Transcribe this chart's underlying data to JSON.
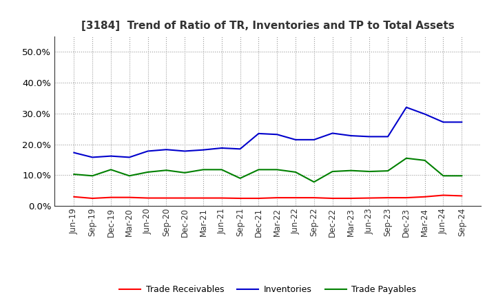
{
  "title": "[3184]  Trend of Ratio of TR, Inventories and TP to Total Assets",
  "x_labels": [
    "Jun-19",
    "Sep-19",
    "Dec-19",
    "Mar-20",
    "Jun-20",
    "Sep-20",
    "Dec-20",
    "Mar-21",
    "Jun-21",
    "Sep-21",
    "Dec-21",
    "Mar-22",
    "Jun-22",
    "Sep-22",
    "Dec-22",
    "Mar-23",
    "Jun-23",
    "Sep-23",
    "Dec-23",
    "Mar-24",
    "Jun-24",
    "Sep-24"
  ],
  "trade_receivables": [
    0.03,
    0.025,
    0.028,
    0.028,
    0.026,
    0.026,
    0.026,
    0.026,
    0.026,
    0.025,
    0.025,
    0.027,
    0.027,
    0.027,
    0.025,
    0.025,
    0.026,
    0.027,
    0.027,
    0.03,
    0.035,
    0.033
  ],
  "inventories": [
    0.173,
    0.158,
    0.162,
    0.158,
    0.178,
    0.183,
    0.178,
    0.182,
    0.188,
    0.185,
    0.235,
    0.232,
    0.215,
    0.215,
    0.236,
    0.228,
    0.225,
    0.225,
    0.32,
    0.298,
    0.272,
    0.272
  ],
  "trade_payables": [
    0.103,
    0.098,
    0.118,
    0.098,
    0.11,
    0.116,
    0.108,
    0.118,
    0.118,
    0.09,
    0.118,
    0.118,
    0.11,
    0.078,
    0.112,
    0.115,
    0.112,
    0.114,
    0.155,
    0.148,
    0.098,
    0.098
  ],
  "tr_color": "#ff0000",
  "inv_color": "#0000cc",
  "tp_color": "#008000",
  "ylim": [
    0.0,
    0.55
  ],
  "yticks": [
    0.0,
    0.1,
    0.2,
    0.3,
    0.4,
    0.5
  ],
  "background_color": "#ffffff",
  "grid_color": "#999999",
  "legend_labels": [
    "Trade Receivables",
    "Inventories",
    "Trade Payables"
  ]
}
